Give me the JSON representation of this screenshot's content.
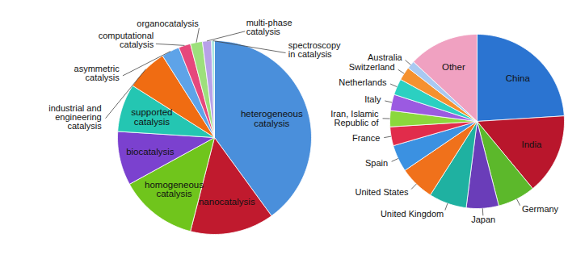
{
  "chart_data": [
    {
      "type": "pie",
      "categories": [
        "heterogeneous catalysis",
        "nanocatalysis",
        "homogeneous catalysis",
        "biocatalysis",
        "supported catalysis",
        "industrial and engineering catalysis",
        "asymmetric catalysis",
        "computational catalysis",
        "organocatalysis",
        "multi-phase catalysis",
        "spectroscopy in catalysis"
      ],
      "values": [
        40,
        14,
        13,
        9,
        8,
        7,
        3,
        2,
        2,
        1.5,
        0.5
      ],
      "colors": [
        "#4a8fdb",
        "#c01a2e",
        "#70c51c",
        "#7b41cf",
        "#24c6b2",
        "#f06c12",
        "#5ea3e8",
        "#e6487c",
        "#9de07c",
        "#b7a1e8",
        "#a9e6df"
      ]
    },
    {
      "type": "pie",
      "categories": [
        "China",
        "India",
        "Germany",
        "Japan",
        "United Kingdom",
        "United States",
        "Spain",
        "France",
        "Iran, Islamic Republic of",
        "Italy",
        "Netherlands",
        "Switzerland",
        "Australia",
        "Other"
      ],
      "values": [
        24,
        15,
        7,
        6,
        7,
        6.5,
        5,
        3.5,
        3,
        3,
        3,
        2.5,
        1.5,
        13
      ],
      "colors": [
        "#2b74d1",
        "#b9162c",
        "#5cb82b",
        "#6a3db9",
        "#1fb1a1",
        "#f0711b",
        "#3b91e1",
        "#e12c4b",
        "#8bd83c",
        "#9b5ae1",
        "#2bd0c1",
        "#f5912f",
        "#a9c9f1",
        "#f0a1c1"
      ]
    }
  ]
}
